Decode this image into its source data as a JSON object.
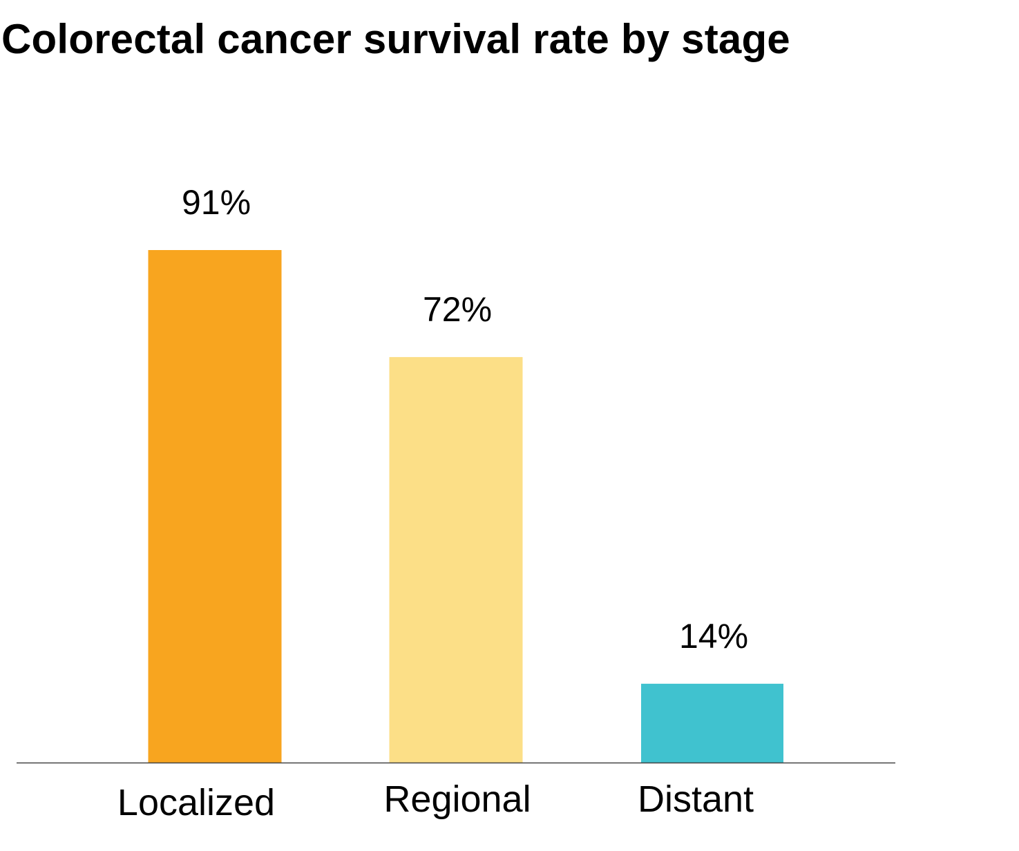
{
  "chart_data": {
    "type": "bar",
    "title": "Colorectal cancer survival rate by stage",
    "categories": [
      "Localized",
      "Regional",
      "Distant"
    ],
    "values": [
      91,
      72,
      14
    ],
    "value_labels": [
      "91%",
      "72%",
      "14%"
    ],
    "colors": [
      "#f8a51f",
      "#fcdf87",
      "#40c2cf"
    ],
    "axis_color": "#444444",
    "ylim": [
      0,
      100
    ],
    "xlabel": "",
    "ylabel": "",
    "grid": false,
    "legend": "none"
  }
}
